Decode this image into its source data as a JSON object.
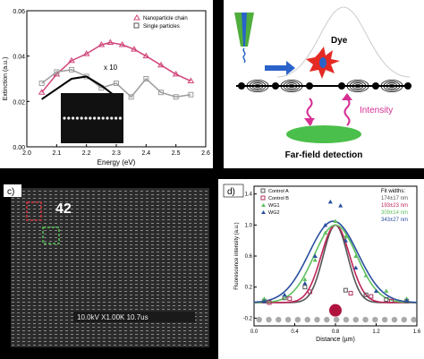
{
  "panel_c": {
    "label": "c)",
    "counter_label": "42",
    "sem_info": "10.0kV X1.00K 10.7us",
    "colors": {
      "red_box": "#d9333c",
      "green_box": "#56c456"
    }
  },
  "panel_b": {
    "dye_label": "Dye",
    "intensity_label": "Intensity",
    "detection_label": "Far-field detection",
    "colors": {
      "tip": "#4fae3c",
      "arrow": "#2a63c9",
      "dye": "#e52a24",
      "wave": "#d63093",
      "ellipse": "#4bbf4b"
    }
  },
  "chart_data": [
    {
      "type": "scatter",
      "panel": "a",
      "xlabel": "Energy (eV)",
      "ylabel": "Extinction (a.u.)",
      "xlim": [
        2.0,
        2.6
      ],
      "ylim": [
        0.0,
        0.06
      ],
      "x_ticks": [
        "2.0",
        "2.1",
        "2.2",
        "2.3",
        "2.4",
        "2.5",
        "2.6"
      ],
      "y_ticks": [
        "0.00",
        "0.02",
        "0.04",
        "0.06"
      ],
      "legend": [
        "Nanoparticle chain",
        "Single particles"
      ],
      "legend_position": "top-right",
      "annotation": "x 10",
      "inset_caption": "SEM inset",
      "series": [
        {
          "name": "Nanoparticle chain",
          "marker": "triangle",
          "color": "#d0457a",
          "x": [
            2.05,
            2.1,
            2.15,
            2.2,
            2.25,
            2.28,
            2.32,
            2.36,
            2.4,
            2.45,
            2.5,
            2.55
          ],
          "y": [
            0.024,
            0.032,
            0.038,
            0.041,
            0.045,
            0.046,
            0.045,
            0.043,
            0.04,
            0.036,
            0.032,
            0.029
          ]
        },
        {
          "name": "Single particles",
          "marker": "square",
          "color": "#9c9c9c",
          "x": [
            2.05,
            2.1,
            2.15,
            2.2,
            2.25,
            2.3,
            2.35,
            2.4,
            2.45,
            2.5,
            2.55
          ],
          "y": [
            0.028,
            0.033,
            0.034,
            0.031,
            0.026,
            0.028,
            0.022,
            0.03,
            0.024,
            0.022,
            0.023
          ]
        }
      ],
      "fit": {
        "name": "fit",
        "x": [
          2.05,
          2.15,
          2.2,
          2.25,
          2.3
        ],
        "y": [
          0.021,
          0.03,
          0.031,
          0.027,
          0.022
        ]
      }
    },
    {
      "type": "scatter",
      "panel": "d",
      "label": "d)",
      "xlabel": "Distance (µm)",
      "ylabel": "Fluorescence intensity (a.u.)",
      "xlim": [
        0.0,
        1.6
      ],
      "ylim": [
        -0.3,
        1.5
      ],
      "x_ticks": [
        "0.0",
        "0.4",
        "0.8",
        "1.2",
        "1.6"
      ],
      "y_ticks": [
        "-0.2",
        "0.2",
        "0.6",
        "1.0",
        "1.4"
      ],
      "legend": [
        "Control A",
        "Control B",
        "WG1",
        "WG2"
      ],
      "fit_widths_title": "Fit widths:",
      "fit_widths": [
        {
          "text": "174±17 nm",
          "color": "#555555"
        },
        {
          "text": "193±23 nm",
          "color": "#c0245a"
        },
        {
          "text": "309±14 nm",
          "color": "#5fbf5f"
        },
        {
          "text": "343±27 nm",
          "color": "#2a4fa0"
        }
      ],
      "series": [
        {
          "name": "Control A",
          "color": "#555555",
          "x": [
            0.1,
            0.3,
            0.5,
            0.9,
            1.1,
            1.3,
            1.5
          ],
          "y": [
            0.02,
            0.06,
            0.2,
            0.16,
            0.1,
            0.04,
            0.02
          ]
        },
        {
          "name": "Control B",
          "color": "#b03060",
          "x": [
            0.15,
            0.35,
            0.55,
            0.95,
            1.15,
            1.35
          ],
          "y": [
            0.0,
            0.05,
            0.14,
            0.12,
            0.08,
            0.02
          ]
        },
        {
          "name": "WG1",
          "color": "#5fbf5f",
          "x": [
            0.1,
            0.3,
            0.5,
            0.6,
            0.7,
            0.8,
            0.9,
            1.0,
            1.1,
            1.3,
            1.5
          ],
          "y": [
            0.05,
            0.1,
            0.3,
            0.55,
            0.9,
            1.05,
            0.85,
            0.6,
            0.35,
            0.15,
            0.05
          ]
        },
        {
          "name": "WG2",
          "color": "#2a4fa0",
          "x": [
            0.1,
            0.3,
            0.5,
            0.6,
            0.7,
            0.75,
            0.85,
            0.9,
            1.0,
            1.2,
            1.5
          ],
          "y": [
            0.02,
            0.1,
            0.25,
            0.6,
            1.0,
            1.3,
            1.25,
            0.8,
            0.45,
            0.15,
            0.03
          ]
        }
      ],
      "fits": [
        {
          "name": "Control A",
          "center": 0.8,
          "width": 0.12,
          "amplitude": 1.0,
          "color": "#555555"
        },
        {
          "name": "Control B",
          "center": 0.8,
          "width": 0.14,
          "amplitude": 1.0,
          "color": "#c0245a"
        },
        {
          "name": "WG1",
          "center": 0.8,
          "width": 0.21,
          "amplitude": 1.0,
          "color": "#5fbf5f"
        },
        {
          "name": "WG2",
          "center": 0.78,
          "width": 0.24,
          "amplitude": 1.05,
          "color": "#2a4fa0"
        }
      ],
      "baseline_row_y": -0.22,
      "marker_circle_x": 0.8
    }
  ]
}
